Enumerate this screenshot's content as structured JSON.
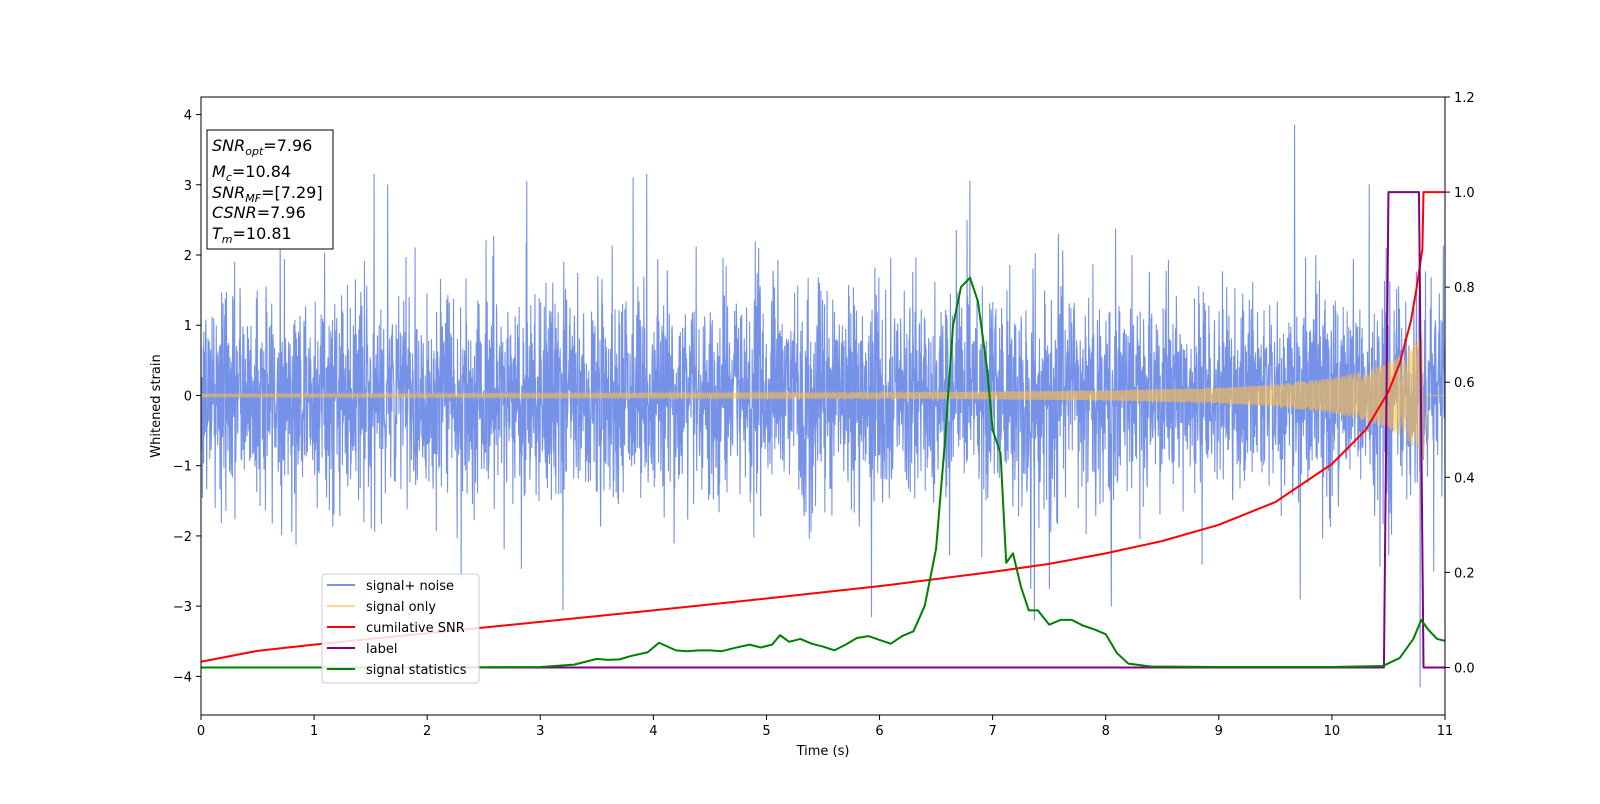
{
  "chart_data": {
    "type": "line",
    "title": "",
    "xlabel": "Time (s)",
    "ylabel": "Whitened strain",
    "ylabel_right": "",
    "xlim": [
      0,
      11
    ],
    "ylim": [
      -4.55,
      4.25
    ],
    "ylim_right": [
      -0.1,
      1.2
    ],
    "grid": false,
    "legend_placement": "lower-left",
    "x_ticks": [
      0,
      1,
      2,
      3,
      4,
      5,
      6,
      7,
      8,
      9,
      10,
      11
    ],
    "x_tick_labels": [
      "0",
      "1",
      "2",
      "3",
      "4",
      "5",
      "6",
      "7",
      "8",
      "9",
      "10",
      "11"
    ],
    "y_ticks": [
      -4,
      -3,
      -2,
      -1,
      0,
      1,
      2,
      3,
      4
    ],
    "y_tick_labels": [
      "−4",
      "−3",
      "−2",
      "−1",
      "0",
      "1",
      "2",
      "3",
      "4"
    ],
    "y_right_ticks": [
      0.0,
      0.2,
      0.4,
      0.6,
      0.8,
      1.0,
      1.2
    ],
    "y_right_tick_labels": [
      "0.0",
      "0.2",
      "0.4",
      "0.6",
      "0.8",
      "1.0",
      "1.2"
    ],
    "annotation": {
      "lines": [
        {
          "sym": "SNR",
          "sub": "opt",
          "value": "=7.96"
        },
        {
          "sym": "M",
          "sub": "c",
          "value": "=10.84"
        },
        {
          "sym": "SNR",
          "sub": "MF",
          "value": "=[7.29]"
        },
        {
          "sym": "CSNR",
          "sub": "",
          "value": "=7.96"
        },
        {
          "sym": "T",
          "sub": "m",
          "value": "=10.81"
        }
      ]
    },
    "series": [
      {
        "name": "signal+ noise",
        "color": "#7592e8",
        "axis": "left",
        "kind": "noise",
        "sigma": 0.75,
        "peaks": [
          {
            "x": 1.53,
            "y": 3.15
          },
          {
            "x": 1.65,
            "y": 3.0
          },
          {
            "x": 2.88,
            "y": 3.05
          },
          {
            "x": 3.82,
            "y": 3.1
          },
          {
            "x": 3.94,
            "y": 3.15
          },
          {
            "x": 5.93,
            "y": 3.36
          },
          {
            "x": 6.8,
            "y": 3.05
          },
          {
            "x": 9.67,
            "y": 3.85
          },
          {
            "x": 10.33,
            "y": 3.0
          },
          {
            "x": 3.2,
            "y": -3.05
          },
          {
            "x": 5.93,
            "y": -3.15
          },
          {
            "x": 7.37,
            "y": -3.2
          },
          {
            "x": 8.05,
            "y": -3.0
          },
          {
            "x": 9.72,
            "y": -2.9
          },
          {
            "x": 10.78,
            "y": -4.15
          },
          {
            "x": 2.3,
            "y": -2.6
          },
          {
            "x": 10.9,
            "y": -2.5
          }
        ]
      },
      {
        "name": "signal only",
        "color": "#ffbf47",
        "axis": "left",
        "kind": "chirp",
        "merger_time": 10.81,
        "end_time": 10.84,
        "envelope": [
          {
            "x": 0,
            "y": 0.02
          },
          {
            "x": 6.0,
            "y": 0.04
          },
          {
            "x": 8.0,
            "y": 0.07
          },
          {
            "x": 9.0,
            "y": 0.11
          },
          {
            "x": 9.5,
            "y": 0.16
          },
          {
            "x": 10.0,
            "y": 0.25
          },
          {
            "x": 10.3,
            "y": 0.36
          },
          {
            "x": 10.5,
            "y": 0.48
          },
          {
            "x": 10.65,
            "y": 0.62
          },
          {
            "x": 10.75,
            "y": 0.78
          },
          {
            "x": 10.81,
            "y": 0.92
          },
          {
            "x": 10.84,
            "y": 0.2
          }
        ]
      },
      {
        "name": "cumilative SNR",
        "color": "#ff0000",
        "axis": "right",
        "kind": "line",
        "x": [
          0,
          0.5,
          1,
          2,
          3,
          4,
          5,
          6,
          7,
          7.5,
          8,
          8.5,
          9,
          9.5,
          10,
          10.3,
          10.5,
          10.6,
          10.7,
          10.75,
          10.8,
          10.81,
          11
        ],
        "y": [
          0.012,
          0.035,
          0.048,
          0.072,
          0.096,
          0.12,
          0.145,
          0.171,
          0.201,
          0.218,
          0.24,
          0.266,
          0.3,
          0.348,
          0.428,
          0.5,
          0.58,
          0.64,
          0.73,
          0.8,
          0.88,
          1.0,
          1.0
        ]
      },
      {
        "name": "label",
        "color": "#800080",
        "axis": "right",
        "kind": "line",
        "x": [
          0,
          10.46,
          10.5,
          10.77,
          10.81,
          11
        ],
        "y": [
          0.0,
          0.0,
          1.0,
          1.0,
          0.0,
          0.0
        ]
      },
      {
        "name": "signal statistics",
        "color": "#008000",
        "axis": "right",
        "kind": "line",
        "x": [
          0,
          1,
          2,
          3,
          3.3,
          3.5,
          3.6,
          3.7,
          3.8,
          3.95,
          4.05,
          4.2,
          4.3,
          4.4,
          4.5,
          4.6,
          4.7,
          4.85,
          4.95,
          5.05,
          5.12,
          5.2,
          5.3,
          5.4,
          5.5,
          5.6,
          5.7,
          5.8,
          5.9,
          6.0,
          6.1,
          6.2,
          6.3,
          6.4,
          6.5,
          6.58,
          6.65,
          6.72,
          6.8,
          6.87,
          6.95,
          7.0,
          7.07,
          7.12,
          7.18,
          7.25,
          7.32,
          7.4,
          7.5,
          7.6,
          7.7,
          7.8,
          7.9,
          8.0,
          8.1,
          8.2,
          8.4,
          9,
          10,
          10.45,
          10.6,
          10.72,
          10.79,
          10.85,
          10.93,
          11
        ],
        "y": [
          0.0,
          0.0,
          0.0,
          0.001,
          0.006,
          0.018,
          0.016,
          0.017,
          0.024,
          0.032,
          0.052,
          0.036,
          0.034,
          0.036,
          0.036,
          0.034,
          0.04,
          0.048,
          0.042,
          0.048,
          0.068,
          0.054,
          0.06,
          0.05,
          0.044,
          0.036,
          0.048,
          0.062,
          0.066,
          0.058,
          0.05,
          0.066,
          0.076,
          0.13,
          0.25,
          0.48,
          0.72,
          0.8,
          0.82,
          0.77,
          0.63,
          0.5,
          0.45,
          0.22,
          0.24,
          0.17,
          0.12,
          0.12,
          0.09,
          0.1,
          0.1,
          0.088,
          0.08,
          0.07,
          0.03,
          0.008,
          0.002,
          0.001,
          0.001,
          0.003,
          0.02,
          0.06,
          0.1,
          0.08,
          0.06,
          0.056
        ]
      }
    ]
  }
}
